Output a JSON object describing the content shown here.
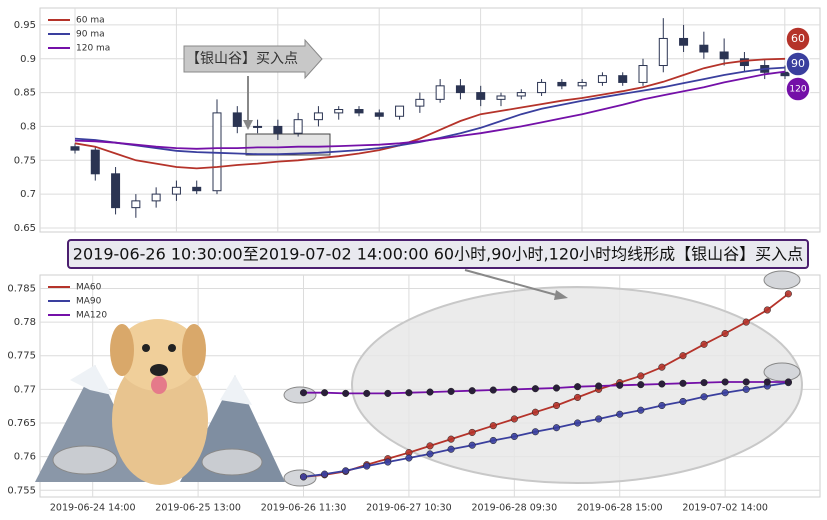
{
  "chart_data": [
    {
      "type": "candlestick",
      "candles": [
        [
          0.77,
          0.775,
          0.76,
          0.765
        ],
        [
          0.765,
          0.77,
          0.72,
          0.73
        ],
        [
          0.73,
          0.74,
          0.67,
          0.68
        ],
        [
          0.68,
          0.7,
          0.665,
          0.69
        ],
        [
          0.69,
          0.71,
          0.68,
          0.7
        ],
        [
          0.7,
          0.72,
          0.69,
          0.71
        ],
        [
          0.71,
          0.72,
          0.7,
          0.705
        ],
        [
          0.705,
          0.84,
          0.7,
          0.82
        ],
        [
          0.82,
          0.83,
          0.79,
          0.8
        ],
        [
          0.8,
          0.81,
          0.79,
          0.8
        ],
        [
          0.8,
          0.81,
          0.78,
          0.79
        ],
        [
          0.79,
          0.82,
          0.785,
          0.81
        ],
        [
          0.81,
          0.83,
          0.8,
          0.82
        ],
        [
          0.82,
          0.83,
          0.81,
          0.825
        ],
        [
          0.825,
          0.83,
          0.815,
          0.82
        ],
        [
          0.82,
          0.825,
          0.81,
          0.815
        ],
        [
          0.815,
          0.83,
          0.81,
          0.83
        ],
        [
          0.83,
          0.85,
          0.82,
          0.84
        ],
        [
          0.84,
          0.87,
          0.835,
          0.86
        ],
        [
          0.86,
          0.87,
          0.84,
          0.85
        ],
        [
          0.85,
          0.86,
          0.83,
          0.84
        ],
        [
          0.84,
          0.85,
          0.83,
          0.845
        ],
        [
          0.845,
          0.855,
          0.84,
          0.85
        ],
        [
          0.85,
          0.87,
          0.845,
          0.865
        ],
        [
          0.865,
          0.87,
          0.855,
          0.86
        ],
        [
          0.86,
          0.87,
          0.855,
          0.865
        ],
        [
          0.865,
          0.88,
          0.86,
          0.875
        ],
        [
          0.875,
          0.88,
          0.86,
          0.865
        ],
        [
          0.865,
          0.9,
          0.86,
          0.89
        ],
        [
          0.89,
          0.96,
          0.88,
          0.93
        ],
        [
          0.93,
          0.95,
          0.91,
          0.92
        ],
        [
          0.92,
          0.94,
          0.9,
          0.91
        ],
        [
          0.91,
          0.93,
          0.89,
          0.9
        ],
        [
          0.9,
          0.91,
          0.88,
          0.89
        ],
        [
          0.89,
          0.9,
          0.87,
          0.88
        ],
        [
          0.88,
          0.89,
          0.87,
          0.875
        ]
      ],
      "up_color": "#ffffff",
      "down_color": "#2b3452",
      "series": [
        {
          "name": "60 ma",
          "color": "#b5332a",
          "values": [
            0.775,
            0.77,
            0.76,
            0.75,
            0.745,
            0.74,
            0.738,
            0.74,
            0.743,
            0.745,
            0.748,
            0.75,
            0.753,
            0.756,
            0.76,
            0.765,
            0.772,
            0.782,
            0.795,
            0.808,
            0.818,
            0.823,
            0.828,
            0.833,
            0.838,
            0.842,
            0.847,
            0.852,
            0.858,
            0.866,
            0.876,
            0.886,
            0.893,
            0.897,
            0.899,
            0.9
          ]
        },
        {
          "name": "90 ma",
          "color": "#3a3f9e",
          "values": [
            0.782,
            0.78,
            0.776,
            0.772,
            0.768,
            0.764,
            0.762,
            0.761,
            0.76,
            0.759,
            0.759,
            0.76,
            0.761,
            0.763,
            0.765,
            0.768,
            0.772,
            0.777,
            0.783,
            0.79,
            0.798,
            0.808,
            0.818,
            0.826,
            0.832,
            0.838,
            0.843,
            0.848,
            0.853,
            0.858,
            0.864,
            0.87,
            0.876,
            0.881,
            0.885,
            0.887
          ]
        },
        {
          "name": "120 ma",
          "color": "#7410a8",
          "values": [
            0.779,
            0.778,
            0.776,
            0.773,
            0.77,
            0.768,
            0.767,
            0.768,
            0.768,
            0.769,
            0.769,
            0.77,
            0.77,
            0.771,
            0.772,
            0.773,
            0.775,
            0.778,
            0.782,
            0.786,
            0.79,
            0.795,
            0.8,
            0.806,
            0.812,
            0.818,
            0.825,
            0.832,
            0.84,
            0.846,
            0.852,
            0.858,
            0.865,
            0.871,
            0.877,
            0.881
          ]
        }
      ],
      "ylim": [
        0.644,
        0.975
      ],
      "yticks": [
        0.65,
        0.7,
        0.75,
        0.8,
        0.85,
        0.9,
        0.95
      ],
      "grid": true,
      "legend": "upper left",
      "annotation": "【银山谷】买入点",
      "badges": [
        60,
        90,
        120
      ]
    },
    {
      "type": "line",
      "annotation": "2019-06-26 10:30:00至2019-07-02 14:00:00 60小时,90小时,120小时均线形成【银山谷】买入点",
      "categories": [
        null,
        null,
        "2019-06-24 14:00",
        null,
        null,
        null,
        null,
        "2019-06-25 13:00",
        null,
        null,
        null,
        null,
        "2019-06-26 11:30",
        null,
        null,
        null,
        null,
        "2019-06-27 10:30",
        null,
        null,
        null,
        null,
        "2019-06-28 09:30",
        null,
        null,
        null,
        null,
        "2019-06-28 15:00",
        null,
        null,
        null,
        null,
        "2019-07-02 14:00",
        null,
        null,
        null,
        null
      ],
      "series": [
        {
          "name": "MA60",
          "color": "#b5332a",
          "values": [
            null,
            null,
            null,
            null,
            null,
            null,
            null,
            null,
            null,
            null,
            null,
            null,
            0.757,
            0.7573,
            0.7578,
            0.7588,
            0.7597,
            0.7606,
            0.7616,
            0.7626,
            0.7636,
            0.7646,
            0.7656,
            0.7666,
            0.7676,
            0.7688,
            0.77,
            0.771,
            0.772,
            0.7733,
            0.775,
            0.7767,
            0.7783,
            0.78,
            0.7818,
            0.7842,
            null
          ]
        },
        {
          "name": "MA90",
          "color": "#3a3f9e",
          "values": [
            null,
            null,
            null,
            null,
            null,
            null,
            null,
            null,
            null,
            null,
            null,
            null,
            0.757,
            0.7574,
            0.7579,
            0.7586,
            0.7592,
            0.7598,
            0.7604,
            0.7611,
            0.7617,
            0.7624,
            0.763,
            0.7637,
            0.7643,
            0.765,
            0.7656,
            0.7663,
            0.7669,
            0.7676,
            0.7682,
            0.7689,
            0.7695,
            0.77,
            0.7705,
            0.771,
            null
          ]
        },
        {
          "name": "MA120",
          "color": "#7410a8",
          "values": [
            null,
            null,
            null,
            null,
            null,
            null,
            null,
            null,
            null,
            null,
            null,
            null,
            0.7695,
            0.7695,
            0.7694,
            0.7694,
            0.7694,
            0.7695,
            0.7696,
            0.7697,
            0.7698,
            0.7699,
            0.77,
            0.7701,
            0.7702,
            0.7704,
            0.7705,
            0.7706,
            0.7707,
            0.7708,
            0.7709,
            0.771,
            0.7711,
            0.7711,
            0.7711,
            0.7711,
            null
          ]
        }
      ],
      "ylim": [
        0.754,
        0.787
      ],
      "yticks": [
        0.755,
        0.76,
        0.765,
        0.77,
        0.775,
        0.78,
        0.785
      ],
      "grid": true,
      "legend": "upper left"
    }
  ]
}
